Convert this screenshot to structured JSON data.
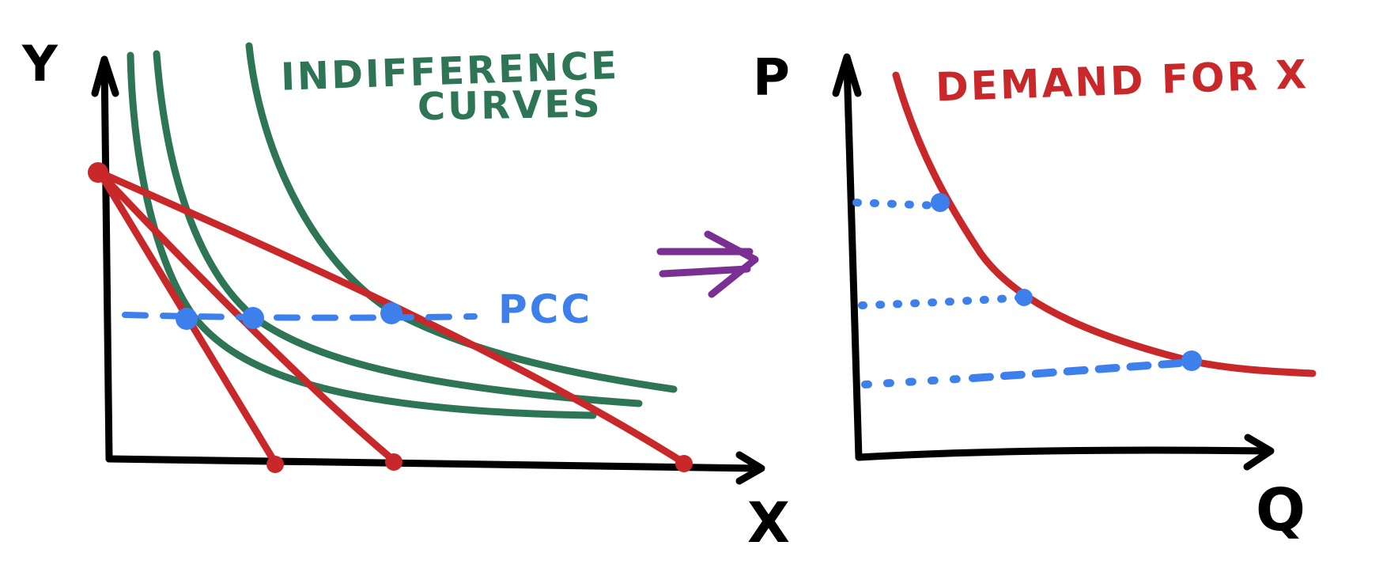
{
  "colors": {
    "axis": "#000000",
    "budget": "#c9282b",
    "indifference": "#2e7556",
    "pcc": "#3d80ec",
    "arrow": "#7a2f92",
    "demand": "#c9282b",
    "points": "#3d80ec"
  },
  "left_panel": {
    "y_axis_label": "Y",
    "x_axis_label": "X",
    "indifference_label_line1": "INDIFFERENCE",
    "indifference_label_line2": "CURVES",
    "pcc_label": "PCC"
  },
  "right_panel": {
    "y_axis_label": "P",
    "x_axis_label": "Q",
    "demand_label": "DEMAND FOR X"
  },
  "arrow_icon": "double-right-arrow-icon"
}
